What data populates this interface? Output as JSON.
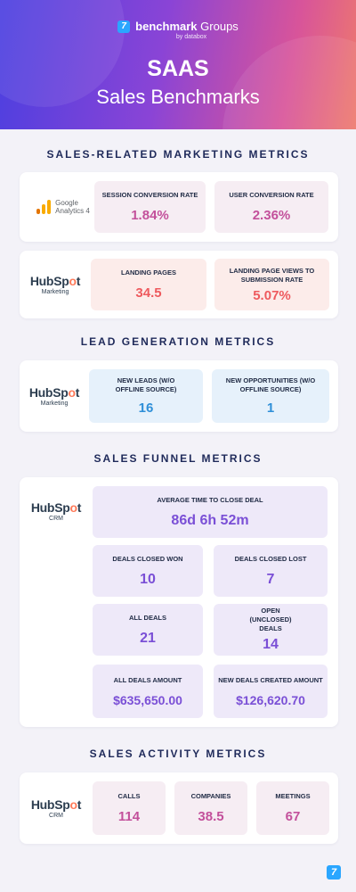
{
  "header": {
    "brand_icon": "7",
    "brand_bold": "benchmark",
    "brand_rest": "Groups",
    "brand_sub": "by databox",
    "title_line1": "SAAS",
    "title_line2": "Sales Benchmarks"
  },
  "logos": {
    "ga_line1": "Google",
    "ga_line2": "Analytics 4",
    "hubspot_prefix": "HubSp",
    "hubspot_o": "o",
    "hubspot_suffix": "t",
    "hubspot_marketing": "Marketing",
    "hubspot_crm": "CRM"
  },
  "sections": {
    "marketing": {
      "title": "SALES-RELATED MARKETING METRICS",
      "ga_metrics": [
        {
          "label": "SESSION CONVERSION RATE",
          "value": "1.84%"
        },
        {
          "label": "USER CONVERSION RATE",
          "value": "2.36%"
        }
      ],
      "hs_metrics": [
        {
          "label": "LANDING PAGES",
          "value": "34.5"
        },
        {
          "label": "LANDING PAGE VIEWS TO SUBMISSION RATE",
          "value": "5.07%"
        }
      ]
    },
    "leads": {
      "title": "LEAD GENERATION METRICS",
      "metrics": [
        {
          "label": "NEW LEADS (W/O OFFLINE SOURCE)",
          "value": "16"
        },
        {
          "label": "NEW OPPORTUNITIES (W/O OFFLINE SOURCE)",
          "value": "1"
        }
      ]
    },
    "funnel": {
      "title": "SALES FUNNEL METRICS",
      "metrics": [
        {
          "label": "AVERAGE TIME TO CLOSE DEAL",
          "value": "86d 6h 52m"
        },
        {
          "label": "DEALS CLOSED WON",
          "value": "10"
        },
        {
          "label": "DEALS CLOSED LOST",
          "value": "7"
        },
        {
          "label": "ALL DEALS",
          "value": "21"
        },
        {
          "label": "OPEN (UNCLOSED) DEALS",
          "value": "14"
        },
        {
          "label": "ALL DEALS AMOUNT",
          "value": "$635,650.00"
        },
        {
          "label": "NEW DEALS CREATED AMOUNT",
          "value": "$126,620.70"
        }
      ]
    },
    "activity": {
      "title": "SALES ACTIVITY METRICS",
      "metrics": [
        {
          "label": "CALLS",
          "value": "114"
        },
        {
          "label": "COMPANIES",
          "value": "38.5"
        },
        {
          "label": "MEETINGS",
          "value": "67"
        }
      ]
    }
  },
  "colors": {
    "ga_orange": "#f9ab00",
    "ga_dark_orange": "#e37400",
    "hubspot_orange": "#ff7a59",
    "brand_blue": "#2aa6ff"
  }
}
